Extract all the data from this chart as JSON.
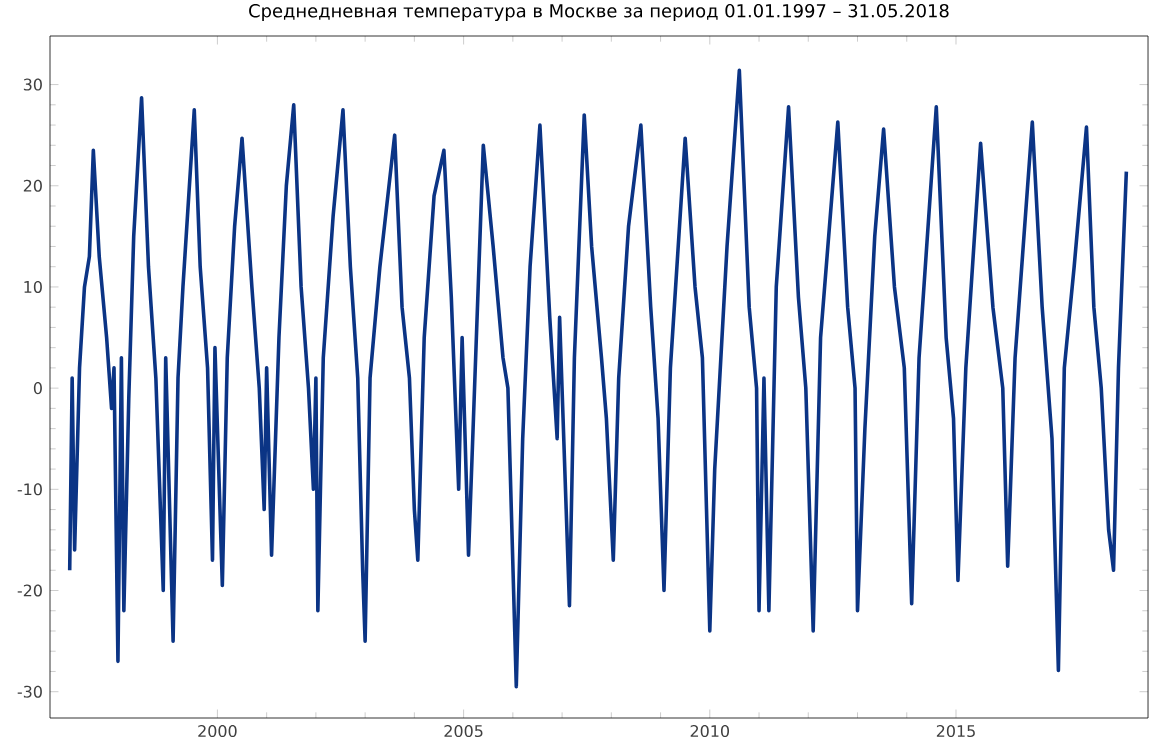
{
  "chart_data": {
    "type": "line",
    "title": "Среднедневная температура в Москве за период 01.01.1997 – 31.05.2018",
    "x": [
      1997.0,
      1997.05,
      1997.1,
      1997.2,
      1997.3,
      1997.4,
      1997.48,
      1997.6,
      1997.75,
      1997.85,
      1997.9,
      1997.98,
      1998.05,
      1998.1,
      1998.2,
      1998.3,
      1998.46,
      1998.6,
      1998.75,
      1998.9,
      1998.95,
      1999.1,
      1999.2,
      1999.3,
      1999.53,
      1999.65,
      1999.8,
      1999.9,
      1999.95,
      2000.1,
      2000.2,
      2000.35,
      2000.5,
      2000.7,
      2000.85,
      2000.95,
      2001.0,
      2001.1,
      2001.25,
      2001.4,
      2001.55,
      2001.7,
      2001.85,
      2001.95,
      2002.0,
      2002.04,
      2002.15,
      2002.35,
      2002.55,
      2002.7,
      2002.85,
      2002.95,
      2003.0,
      2003.1,
      2003.3,
      2003.6,
      2003.75,
      2003.9,
      2004.0,
      2004.07,
      2004.2,
      2004.4,
      2004.6,
      2004.75,
      2004.9,
      2004.97,
      2005.1,
      2005.2,
      2005.4,
      2005.6,
      2005.8,
      2005.9,
      2006.07,
      2006.2,
      2006.35,
      2006.55,
      2006.75,
      2006.9,
      2006.95,
      2007.15,
      2007.25,
      2007.45,
      2007.6,
      2007.8,
      2007.9,
      2008.04,
      2008.15,
      2008.35,
      2008.6,
      2008.8,
      2008.95,
      2009.07,
      2009.2,
      2009.5,
      2009.7,
      2009.85,
      2010.0,
      2010.1,
      2010.35,
      2010.6,
      2010.8,
      2010.95,
      2011.0,
      2011.1,
      2011.2,
      2011.35,
      2011.6,
      2011.8,
      2011.95,
      2012.1,
      2012.25,
      2012.6,
      2012.8,
      2012.95,
      2013.0,
      2013.15,
      2013.35,
      2013.53,
      2013.75,
      2013.95,
      2014.1,
      2014.25,
      2014.6,
      2014.8,
      2014.95,
      2015.04,
      2015.2,
      2015.5,
      2015.75,
      2015.95,
      2016.05,
      2016.2,
      2016.55,
      2016.75,
      2016.95,
      2017.08,
      2017.2,
      2017.4,
      2017.65,
      2017.8,
      2017.95,
      2018.1,
      2018.2,
      2018.3,
      2018.46
    ],
    "values": [
      -18,
      1,
      -16,
      2,
      10,
      13,
      23.5,
      13,
      5,
      -2,
      2,
      -27,
      3,
      -22,
      -1,
      15,
      28.7,
      12,
      1,
      -20,
      3,
      -25,
      1,
      10,
      27.5,
      12,
      2,
      -17,
      4,
      -19.5,
      3,
      16,
      24.7,
      10,
      0,
      -12,
      2,
      -16.5,
      5,
      20,
      28,
      10,
      0,
      -10,
      1,
      -22,
      3,
      17,
      27.5,
      12,
      1,
      -18,
      -25,
      1,
      12,
      25,
      8,
      1,
      -12,
      -17,
      5,
      19,
      23.5,
      9,
      -10,
      5,
      -16.5,
      -3,
      24,
      14,
      3,
      0,
      -29.5,
      -5,
      12,
      26,
      7,
      -5,
      7,
      -21.5,
      3,
      27,
      14,
      3,
      -3,
      -17,
      1,
      16,
      26,
      8,
      -3,
      -20,
      2,
      24.7,
      10,
      3,
      -24,
      -8,
      14,
      31.4,
      8,
      0,
      -22,
      1,
      -22,
      10,
      27.8,
      9,
      0,
      -24,
      5,
      26.3,
      8,
      0,
      -22,
      -4,
      15,
      25.6,
      10,
      2,
      -21.3,
      3,
      27.8,
      5,
      -3,
      -19,
      2,
      24.2,
      8,
      0,
      -17.6,
      3,
      26.3,
      8,
      -5,
      -27.9,
      2,
      12,
      25.8,
      8,
      0,
      -14,
      -18,
      2,
      21.4
    ],
    "color": "#0b3485",
    "xlim": [
      1996.6,
      2018.9
    ],
    "ylim": [
      -32.6,
      34.8
    ],
    "xticks": [
      2000,
      2005,
      2010,
      2015
    ],
    "yticks": [
      -30,
      -20,
      -10,
      0,
      10,
      20,
      30
    ]
  }
}
